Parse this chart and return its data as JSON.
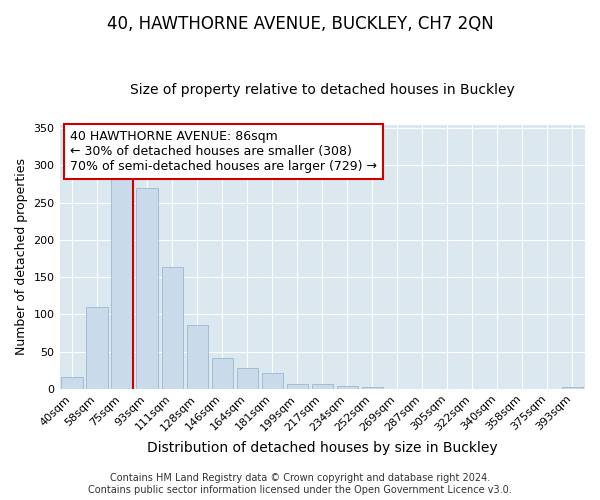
{
  "title": "40, HAWTHORNE AVENUE, BUCKLEY, CH7 2QN",
  "subtitle": "Size of property relative to detached houses in Buckley",
  "xlabel": "Distribution of detached houses by size in Buckley",
  "ylabel": "Number of detached properties",
  "bar_labels": [
    "40sqm",
    "58sqm",
    "75sqm",
    "93sqm",
    "111sqm",
    "128sqm",
    "146sqm",
    "164sqm",
    "181sqm",
    "199sqm",
    "217sqm",
    "234sqm",
    "252sqm",
    "269sqm",
    "287sqm",
    "305sqm",
    "322sqm",
    "340sqm",
    "358sqm",
    "375sqm",
    "393sqm"
  ],
  "bar_values": [
    16,
    110,
    293,
    270,
    163,
    86,
    41,
    28,
    21,
    6,
    6,
    4,
    2,
    0,
    0,
    0,
    0,
    0,
    0,
    0,
    2
  ],
  "bar_color": "#c9daea",
  "bar_edge_color": "#9ab8cc",
  "vline_color": "#cc0000",
  "annotation_line1": "40 HAWTHORNE AVENUE: 86sqm",
  "annotation_line2": "← 30% of detached houses are smaller (308)",
  "annotation_line3": "70% of semi-detached houses are larger (729) →",
  "annotation_box_color": "#ffffff",
  "annotation_box_edge": "#cc0000",
  "ylim": [
    0,
    355
  ],
  "yticks": [
    0,
    50,
    100,
    150,
    200,
    250,
    300,
    350
  ],
  "footer_line1": "Contains HM Land Registry data © Crown copyright and database right 2024.",
  "footer_line2": "Contains public sector information licensed under the Open Government Licence v3.0.",
  "bg_color": "#ffffff",
  "plot_bg_color": "#dce8f0",
  "title_fontsize": 12,
  "subtitle_fontsize": 10,
  "xlabel_fontsize": 10,
  "ylabel_fontsize": 9,
  "tick_fontsize": 8,
  "footer_fontsize": 7,
  "annotation_fontsize": 9
}
